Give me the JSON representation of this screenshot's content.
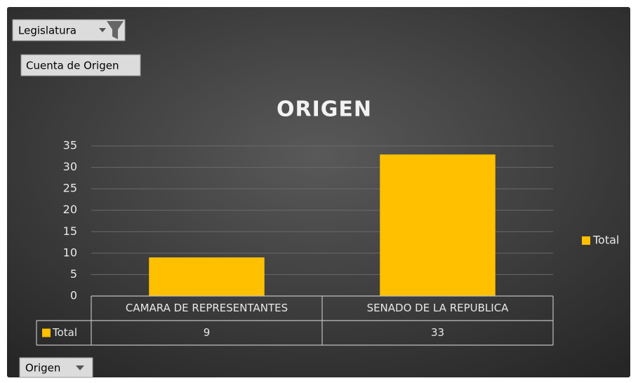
{
  "pivot_buttons": {
    "report_filter": "Legislatura",
    "value_field": "Cuenta de Origen",
    "axis_field": "Origen"
  },
  "chart_data": {
    "type": "bar",
    "title": "ORIGEN",
    "categories": [
      "CAMARA DE REPRESENTANTES",
      "SENADO DE LA REPUBLICA"
    ],
    "series": [
      {
        "name": "Total",
        "color": "#ffc000",
        "values": [
          9,
          33
        ]
      }
    ],
    "ylim": [
      0,
      35
    ],
    "yticks": [
      0,
      5,
      10,
      15,
      20,
      25,
      30,
      35
    ],
    "grid": true,
    "legend": "right",
    "data_table": true
  }
}
